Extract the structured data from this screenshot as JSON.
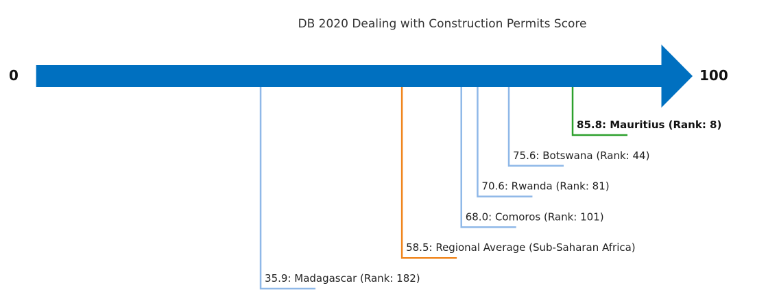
{
  "chart_data": {
    "type": "numberline",
    "title": "DB 2020 Dealing with Construction Permits Score",
    "xlim": [
      0,
      100
    ],
    "xticks": [
      0,
      100
    ],
    "axis_color": "#0070c0",
    "values": [
      35.9,
      58.5,
      68.0,
      70.6,
      75.6,
      85.8
    ],
    "value_labels": [
      "35.9: Madagascar (Rank: 182)",
      "58.5: Regional Average (Sub-Saharan Africa)",
      "68.0: Comoros (Rank: 101)",
      "70.6: Rwanda (Rank: 81)",
      "75.6: Botswana (Rank: 44)",
      "85.8: Mauritius (Rank: 8)"
    ],
    "colors": [
      "#8fb8e8",
      "#f0861e",
      "#8fb8e8",
      "#8fb8e8",
      "#8fb8e8",
      "#2ca02c"
    ],
    "bold": [
      false,
      false,
      false,
      false,
      false,
      true
    ]
  }
}
